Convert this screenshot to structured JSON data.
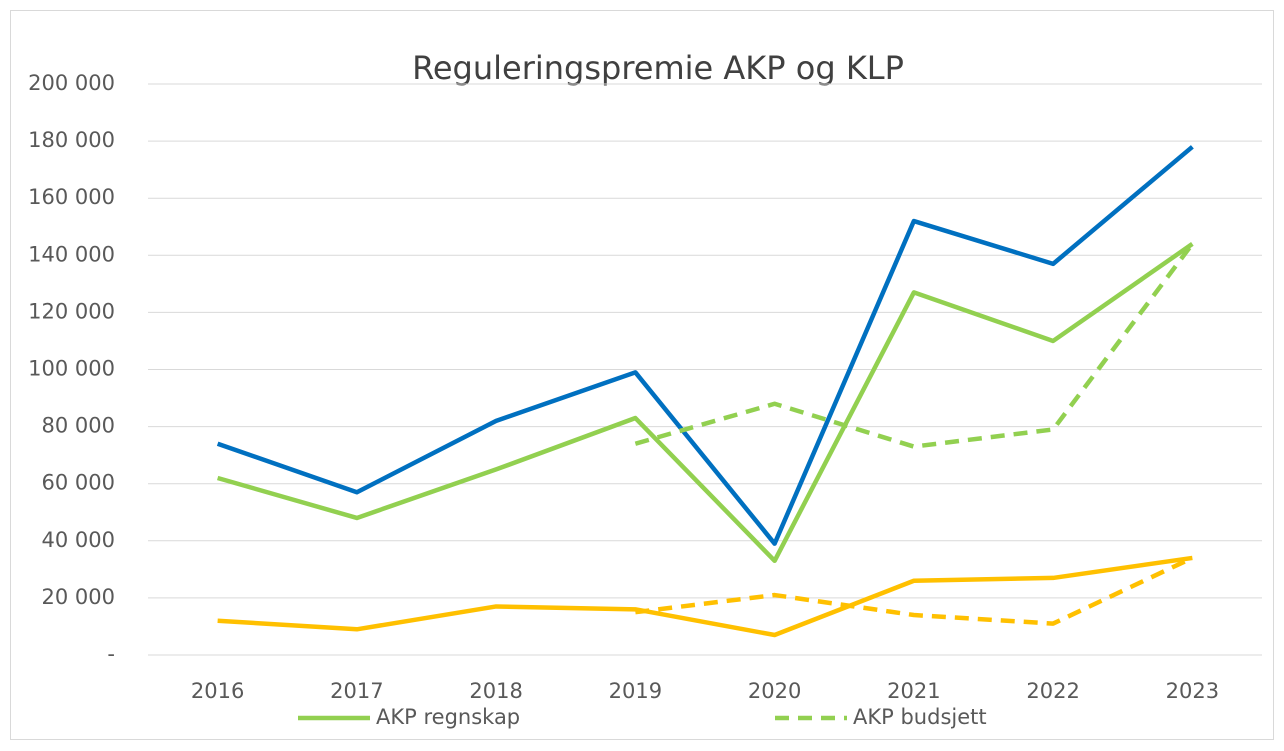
{
  "chart_data": {
    "type": "line",
    "title": "Reguleringspremie AKP og KLP",
    "categories": [
      "2016",
      "2017",
      "2018",
      "2019",
      "2020",
      "2021",
      "2022",
      "2023"
    ],
    "series": [
      {
        "color": "#0070c0",
        "dash": false,
        "values": [
          74000,
          57000,
          82000,
          99000,
          39000,
          152000,
          137000,
          178000
        ]
      },
      {
        "name": "AKP regnskap",
        "color": "#92d050",
        "dash": false,
        "values": [
          62000,
          48000,
          65000,
          83000,
          33000,
          127000,
          110000,
          144000
        ]
      },
      {
        "name": "AKP budsjett",
        "color": "#92d050",
        "dash": true,
        "values": [
          null,
          null,
          null,
          74000,
          88000,
          73000,
          79000,
          144000
        ]
      },
      {
        "color": "#ffc000",
        "dash": false,
        "values": [
          12000,
          9000,
          17000,
          16000,
          7000,
          26000,
          27000,
          34000
        ]
      },
      {
        "color": "#ffc000",
        "dash": true,
        "values": [
          null,
          null,
          null,
          15000,
          21000,
          14000,
          11000,
          34000
        ]
      }
    ],
    "ylim": [
      0,
      200000
    ],
    "yticks": [
      {
        "value": 0,
        "label": "-"
      },
      {
        "value": 20000,
        "label": "20 000"
      },
      {
        "value": 40000,
        "label": "40 000"
      },
      {
        "value": 60000,
        "label": "60 000"
      },
      {
        "value": 80000,
        "label": "80 000"
      },
      {
        "value": 100000,
        "label": "100 000"
      },
      {
        "value": 120000,
        "label": "120 000"
      },
      {
        "value": 140000,
        "label": "140 000"
      },
      {
        "value": 160000,
        "label": "160 000"
      },
      {
        "value": 180000,
        "label": "180 000"
      },
      {
        "value": 200000,
        "label": "200 000"
      }
    ],
    "grid": true
  }
}
